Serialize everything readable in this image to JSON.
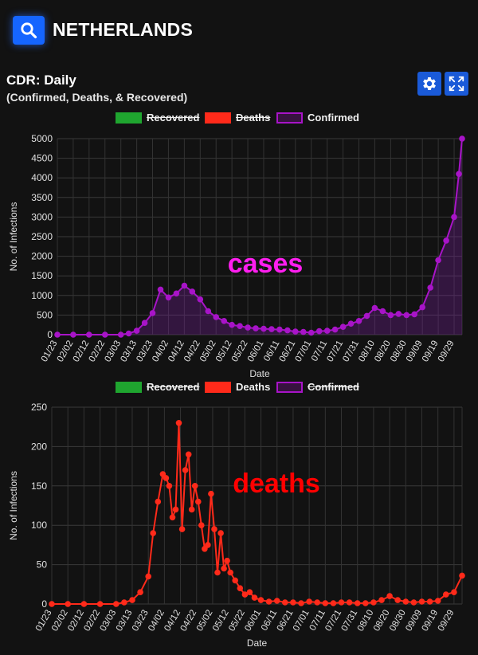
{
  "header": {
    "country": "NETHERLANDS",
    "search_icon": "search-icon"
  },
  "panel": {
    "title": "CDR: Daily",
    "subtitle": "(Confirmed, Deaths, & Recovered)",
    "settings_icon": "gear-icon",
    "expand_icon": "expand-icon"
  },
  "colors": {
    "recovered": "#1fa52f",
    "deaths": "#ff2a1a",
    "confirmed": "#a814c8",
    "annot_cases": "#ff1ef0",
    "annot_deaths": "#ff0000"
  },
  "chart_data": [
    {
      "type": "line",
      "legend": [
        {
          "name": "Recovered",
          "hidden": true
        },
        {
          "name": "Deaths",
          "hidden": true
        },
        {
          "name": "Confirmed",
          "hidden": false
        }
      ],
      "xlabel": "Date",
      "ylabel": "No. of Infections",
      "ylim": [
        0,
        5000
      ],
      "yticks": [
        0,
        500,
        1000,
        1500,
        2000,
        2500,
        3000,
        3500,
        4000,
        4500,
        5000
      ],
      "xtick_labels": [
        "01/23",
        "02/02",
        "02/12",
        "02/22",
        "03/03",
        "03/13",
        "03/23",
        "04/02",
        "04/12",
        "04/22",
        "05/02",
        "05/12",
        "05/22",
        "06/01",
        "06/11",
        "06/21",
        "07/01",
        "07/11",
        "07/21",
        "07/31",
        "08/10",
        "08/20",
        "08/30",
        "09/09",
        "09/19",
        "09/29"
      ],
      "annotation": "cases",
      "grid": true,
      "series": [
        {
          "name": "Confirmed",
          "x": [
            "01/23",
            "02/02",
            "02/12",
            "02/22",
            "03/03",
            "03/08",
            "03/13",
            "03/18",
            "03/23",
            "03/28",
            "04/02",
            "04/07",
            "04/12",
            "04/17",
            "04/22",
            "04/27",
            "05/02",
            "05/07",
            "05/12",
            "05/17",
            "05/22",
            "05/27",
            "06/01",
            "06/06",
            "06/11",
            "06/16",
            "06/21",
            "06/26",
            "07/01",
            "07/06",
            "07/11",
            "07/16",
            "07/21",
            "07/26",
            "07/31",
            "08/05",
            "08/10",
            "08/15",
            "08/20",
            "08/25",
            "08/30",
            "09/04",
            "09/09",
            "09/14",
            "09/19",
            "09/24",
            "09/29",
            "10/02",
            "10/04"
          ],
          "values": [
            0,
            0,
            0,
            0,
            0,
            30,
            100,
            300,
            550,
            1150,
            950,
            1050,
            1250,
            1100,
            900,
            600,
            450,
            350,
            250,
            220,
            180,
            160,
            150,
            140,
            130,
            110,
            80,
            70,
            50,
            90,
            100,
            130,
            200,
            280,
            350,
            480,
            680,
            600,
            500,
            530,
            500,
            520,
            700,
            1200,
            1900,
            2400,
            3000,
            4100,
            5000
          ]
        }
      ]
    },
    {
      "type": "line",
      "legend": [
        {
          "name": "Recovered",
          "hidden": true
        },
        {
          "name": "Deaths",
          "hidden": false
        },
        {
          "name": "Confirmed",
          "hidden": true
        }
      ],
      "xlabel": "Date",
      "ylabel": "No. of Infections",
      "ylim": [
        0,
        250
      ],
      "yticks": [
        0,
        50,
        100,
        150,
        200,
        250
      ],
      "xtick_labels": [
        "01/23",
        "02/02",
        "02/12",
        "02/22",
        "03/03",
        "03/13",
        "03/23",
        "04/02",
        "04/12",
        "04/22",
        "05/02",
        "05/12",
        "05/22",
        "06/01",
        "06/11",
        "06/21",
        "07/01",
        "07/11",
        "07/21",
        "07/31",
        "08/10",
        "08/20",
        "08/30",
        "09/09",
        "09/19",
        "09/29"
      ],
      "annotation": "deaths",
      "grid": true,
      "series": [
        {
          "name": "Deaths",
          "x": [
            "01/23",
            "02/02",
            "02/12",
            "02/22",
            "03/03",
            "03/08",
            "03/13",
            "03/18",
            "03/23",
            "03/26",
            "03/29",
            "04/01",
            "04/03",
            "04/05",
            "04/07",
            "04/09",
            "04/11",
            "04/13",
            "04/15",
            "04/17",
            "04/19",
            "04/21",
            "04/23",
            "04/25",
            "04/27",
            "04/29",
            "05/01",
            "05/03",
            "05/05",
            "05/07",
            "05/09",
            "05/11",
            "05/13",
            "05/16",
            "05/19",
            "05/22",
            "05/25",
            "05/28",
            "06/01",
            "06/06",
            "06/11",
            "06/16",
            "06/21",
            "06/26",
            "07/01",
            "07/06",
            "07/11",
            "07/16",
            "07/21",
            "07/26",
            "07/31",
            "08/05",
            "08/10",
            "08/15",
            "08/20",
            "08/25",
            "08/30",
            "09/04",
            "09/09",
            "09/14",
            "09/19",
            "09/24",
            "09/29",
            "10/04"
          ],
          "values": [
            0,
            0,
            0,
            0,
            0,
            2,
            5,
            15,
            35,
            90,
            130,
            165,
            160,
            150,
            110,
            120,
            230,
            95,
            170,
            190,
            120,
            150,
            130,
            100,
            70,
            75,
            140,
            95,
            40,
            90,
            45,
            55,
            40,
            30,
            20,
            12,
            15,
            8,
            5,
            3,
            4,
            2,
            2,
            1,
            3,
            2,
            1,
            1,
            2,
            2,
            1,
            1,
            2,
            5,
            10,
            5,
            3,
            2,
            3,
            3,
            4,
            12,
            15,
            36
          ]
        }
      ]
    }
  ]
}
